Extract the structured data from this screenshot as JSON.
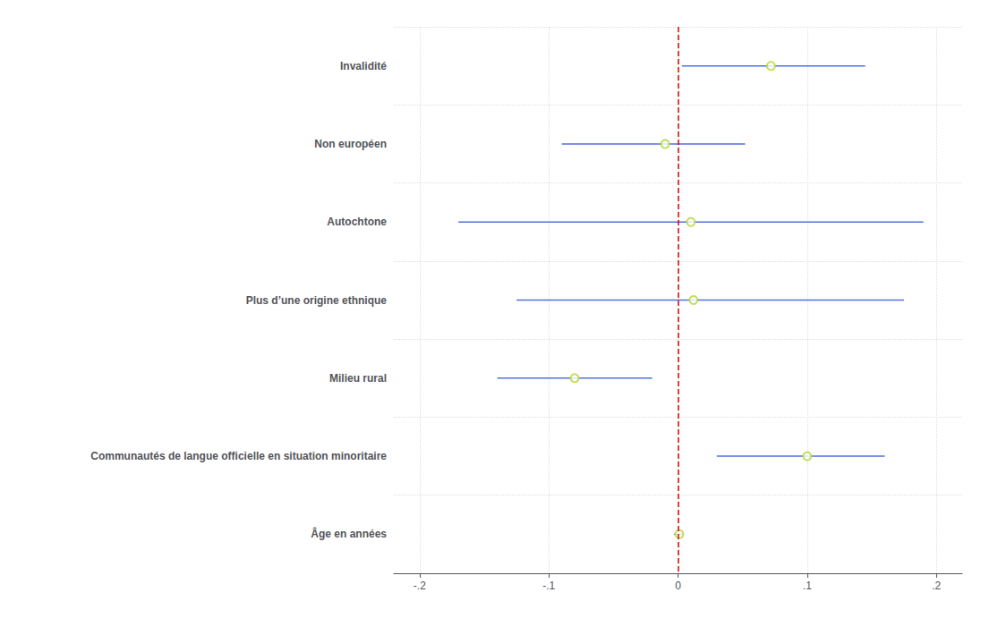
{
  "chart_data": {
    "type": "interval",
    "orientation": "horizontal",
    "categories": [
      "Invalidité",
      "Non européen",
      "Autochtone",
      "Plus d’une origine ethnique",
      "Milieu rural",
      "Communautés de langue officielle en situation minoritaire",
      "Âge en années"
    ],
    "values": [
      0.072,
      -0.01,
      0.01,
      0.012,
      -0.08,
      0.1,
      0.001
    ],
    "ci_low": [
      0.003,
      -0.09,
      -0.17,
      -0.125,
      -0.14,
      0.03,
      -0.003
    ],
    "ci_high": [
      0.145,
      0.052,
      0.19,
      0.175,
      -0.02,
      0.16,
      0.004
    ],
    "xlim": [
      -0.22,
      0.22
    ],
    "xticks": [
      {
        "value": -0.2,
        "label": "-.2"
      },
      {
        "value": -0.1,
        "label": "-.1"
      },
      0,
      {
        "value": 0.1,
        "label": ".1"
      },
      {
        "value": 0.2,
        "label": ".2"
      }
    ],
    "reference_line": {
      "value": 0,
      "color": "#dd0000",
      "line_style": "dashed"
    },
    "marker": "emptyCircle",
    "grid": true
  }
}
